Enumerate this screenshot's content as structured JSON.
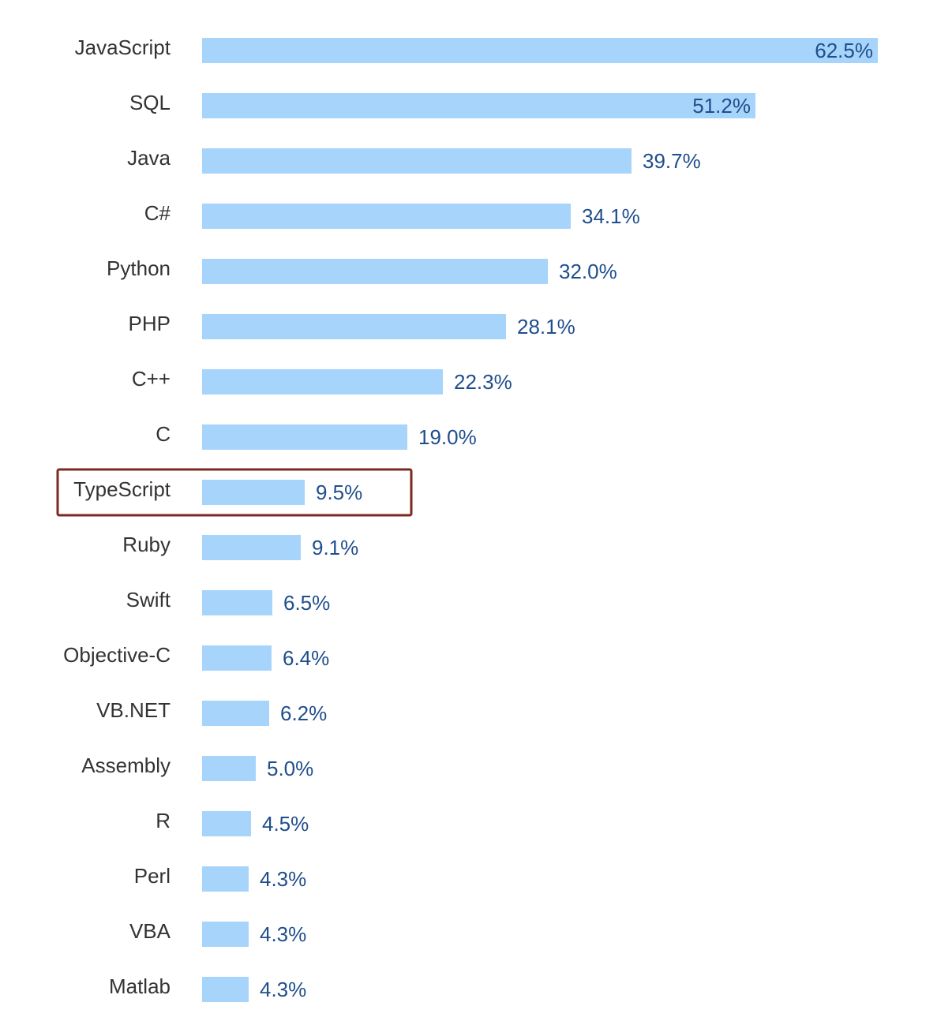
{
  "chart_data": {
    "type": "bar",
    "orientation": "horizontal",
    "categories": [
      "JavaScript",
      "SQL",
      "Java",
      "C#",
      "Python",
      "PHP",
      "C++",
      "C",
      "TypeScript",
      "Ruby",
      "Swift",
      "Objective-C",
      "VB.NET",
      "Assembly",
      "R",
      "Perl",
      "VBA",
      "Matlab"
    ],
    "values": [
      62.5,
      51.2,
      39.7,
      34.1,
      32.0,
      28.1,
      22.3,
      19.0,
      9.5,
      9.1,
      6.5,
      6.4,
      6.2,
      5.0,
      4.5,
      4.3,
      4.3,
      4.3
    ],
    "value_labels": [
      "62.5%",
      "51.2%",
      "39.7%",
      "34.1%",
      "32.0%",
      "28.1%",
      "22.3%",
      "19.0%",
      "9.5%",
      "9.1%",
      "6.5%",
      "6.4%",
      "6.2%",
      "5.0%",
      "4.5%",
      "4.3%",
      "4.3%",
      "4.3%"
    ],
    "highlighted_category": "TypeScript",
    "title": "",
    "xlabel": "",
    "ylabel": "",
    "xlim": [
      0,
      62.5
    ],
    "grid": false,
    "legend": "none"
  },
  "colors": {
    "bar": "#a6d4fa",
    "value_label": "#1f4e8c",
    "category_label": "#333333",
    "highlight_box": "#7b2a22"
  }
}
